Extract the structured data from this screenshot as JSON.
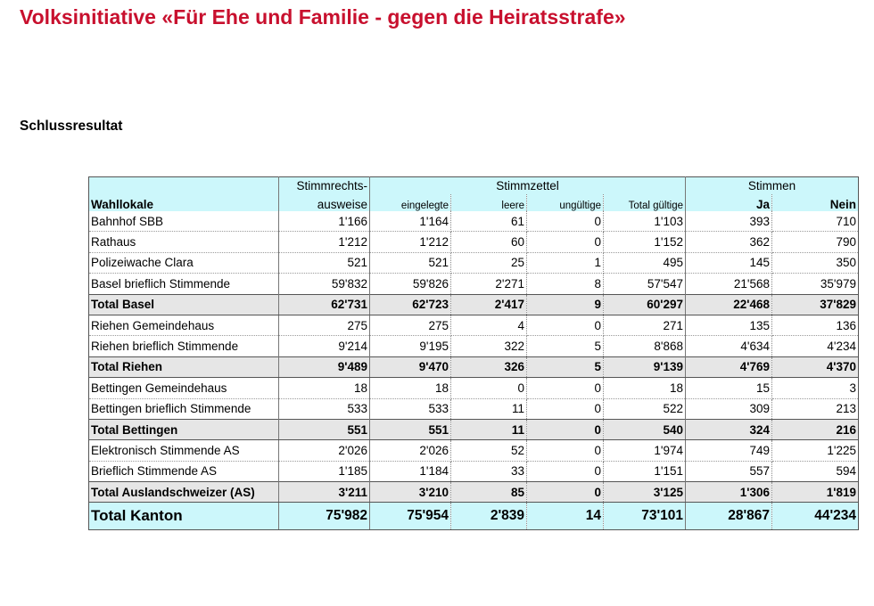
{
  "title": "Volksinitiative «Für Ehe und Familie - gegen die Heiratsstrafe»",
  "subtitle": "Schlussresultat",
  "table": {
    "header": {
      "wahllokale": "Wahllokale",
      "stimmrechts_line1": "Stimmrechts-",
      "stimmrechts_line2": "ausweise",
      "stimmzettel": "Stimmzettel",
      "stimmen": "Stimmen",
      "eingelegte": "eingelegte",
      "leere": "leere",
      "ungueltige": "ungültige",
      "total_gueltige": "Total gültige",
      "ja": "Ja",
      "nein": "Nein"
    },
    "rows": [
      {
        "type": "data",
        "name": "Bahnhof SBB",
        "values": [
          "1'166",
          "1'164",
          "61",
          "0",
          "1'103",
          "393",
          "710"
        ]
      },
      {
        "type": "data",
        "name": "Rathaus",
        "values": [
          "1'212",
          "1'212",
          "60",
          "0",
          "1'152",
          "362",
          "790"
        ]
      },
      {
        "type": "data",
        "name": "Polizeiwache Clara",
        "values": [
          "521",
          "521",
          "25",
          "1",
          "495",
          "145",
          "350"
        ]
      },
      {
        "type": "data",
        "name": "Basel brieflich Stimmende",
        "values": [
          "59'832",
          "59'826",
          "2'271",
          "8",
          "57'547",
          "21'568",
          "35'979"
        ]
      },
      {
        "type": "total",
        "name": "Total Basel",
        "values": [
          "62'731",
          "62'723",
          "2'417",
          "9",
          "60'297",
          "22'468",
          "37'829"
        ]
      },
      {
        "type": "data",
        "name": "Riehen Gemeindehaus",
        "values": [
          "275",
          "275",
          "4",
          "0",
          "271",
          "135",
          "136"
        ]
      },
      {
        "type": "data",
        "name": "Riehen brieflich Stimmende",
        "values": [
          "9'214",
          "9'195",
          "322",
          "5",
          "8'868",
          "4'634",
          "4'234"
        ]
      },
      {
        "type": "total",
        "name": "Total Riehen",
        "values": [
          "9'489",
          "9'470",
          "326",
          "5",
          "9'139",
          "4'769",
          "4'370"
        ]
      },
      {
        "type": "data",
        "name": "Bettingen Gemeindehaus",
        "values": [
          "18",
          "18",
          "0",
          "0",
          "18",
          "15",
          "3"
        ]
      },
      {
        "type": "data",
        "name": "Bettingen brieflich Stimmende",
        "values": [
          "533",
          "533",
          "11",
          "0",
          "522",
          "309",
          "213"
        ]
      },
      {
        "type": "total",
        "name": "Total Bettingen",
        "values": [
          "551",
          "551",
          "11",
          "0",
          "540",
          "324",
          "216"
        ]
      },
      {
        "type": "data",
        "name": "Elektronisch Stimmende AS",
        "values": [
          "2'026",
          "2'026",
          "52",
          "0",
          "1'974",
          "749",
          "1'225"
        ]
      },
      {
        "type": "data",
        "name": "Brieflich Stimmende AS",
        "values": [
          "1'185",
          "1'184",
          "33",
          "0",
          "1'151",
          "557",
          "594"
        ]
      },
      {
        "type": "total",
        "name": "Total Auslandschweizer (AS)",
        "values": [
          "3'211",
          "3'210",
          "85",
          "0",
          "3'125",
          "1'306",
          "1'819"
        ]
      },
      {
        "type": "grand",
        "name": "Total Kanton",
        "values": [
          "75'982",
          "75'954",
          "2'839",
          "14",
          "73'101",
          "28'867",
          "44'234"
        ]
      }
    ]
  },
  "colors": {
    "title": "#c8102e",
    "header_bg": "#ccf7fb",
    "total_bg": "#e6e6e6"
  }
}
